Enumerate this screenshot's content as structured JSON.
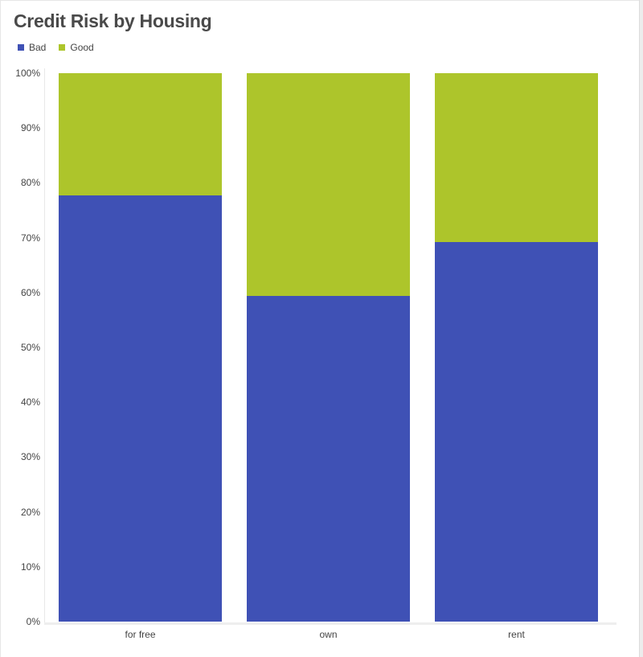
{
  "chart_data": {
    "type": "bar",
    "stacked": true,
    "normalized": true,
    "title": "Credit Risk by Housing",
    "xlabel": "",
    "ylabel": "",
    "categories": [
      "for free",
      "own",
      "rent"
    ],
    "series": [
      {
        "name": "Bad",
        "color": "#3f51b5",
        "values": [
          77.7,
          59.4,
          69.2
        ]
      },
      {
        "name": "Good",
        "color": "#adc52b",
        "values": [
          22.3,
          40.6,
          30.8
        ]
      }
    ],
    "yticks": [
      "0%",
      "10%",
      "20%",
      "30%",
      "40%",
      "50%",
      "60%",
      "70%",
      "80%",
      "90%",
      "100%"
    ],
    "ylim": [
      0,
      100
    ],
    "legend_position": "top-left",
    "grid": false
  },
  "header": {
    "title": "Credit Risk by Housing"
  },
  "legend": [
    {
      "label": "Bad",
      "color": "#3f51b5"
    },
    {
      "label": "Good",
      "color": "#adc52b"
    }
  ]
}
